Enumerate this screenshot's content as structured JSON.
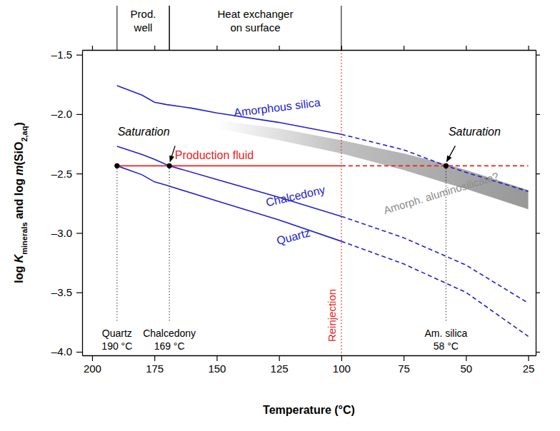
{
  "chart_data": {
    "type": "line",
    "xlabel": "Temperature (°C)",
    "ylabel": [
      {
        "text": "log "
      },
      {
        "text": "K",
        "style": "italic"
      },
      {
        "text": "minerals",
        "style": "sub"
      },
      {
        "text": " and log "
      },
      {
        "text": "m",
        "style": "italic"
      },
      {
        "text": "(SiO"
      },
      {
        "text": "2,aq",
        "style": "sub"
      },
      {
        "text": ")"
      }
    ],
    "xlim": [
      204,
      22
    ],
    "ylim": [
      -4.03,
      -1.46
    ],
    "xticks": [
      200,
      175,
      150,
      125,
      100,
      75,
      50,
      25
    ],
    "yticks": [
      {
        "value": -4.0,
        "label": "–4.0"
      },
      {
        "value": -3.5,
        "label": "–3.5"
      },
      {
        "value": -3.0,
        "label": "–3.0"
      },
      {
        "value": -2.5,
        "label": "–2.5"
      },
      {
        "value": -2.0,
        "label": "–2.0"
      },
      {
        "value": -1.5,
        "label": "–1.5"
      }
    ],
    "series": [
      {
        "name": "Amorphous silica",
        "color": "#2222cc",
        "line_style": "solid",
        "x": [
          190,
          180,
          175,
          170,
          160,
          150,
          125,
          100
        ],
        "values": [
          -1.76,
          -1.84,
          -1.9,
          -1.92,
          -1.95,
          -1.99,
          -2.07,
          -2.17
        ]
      },
      {
        "color": "#2222cc",
        "line_style": "dashed",
        "x": [
          100,
          75,
          58,
          50,
          25
        ],
        "values": [
          -2.17,
          -2.3,
          -2.435,
          -2.49,
          -2.65
        ]
      },
      {
        "name": "Chalcedony",
        "color": "#2222cc",
        "line_style": "solid",
        "x": [
          190,
          180,
          175,
          169,
          150,
          125,
          100
        ],
        "values": [
          -2.27,
          -2.34,
          -2.38,
          -2.435,
          -2.55,
          -2.7,
          -2.86
        ]
      },
      {
        "color": "#2222cc",
        "line_style": "dashed",
        "x": [
          100,
          75,
          50,
          25
        ],
        "values": [
          -2.86,
          -3.04,
          -3.27,
          -3.59
        ]
      },
      {
        "name": "Quartz",
        "color": "#2222cc",
        "line_style": "solid",
        "x": [
          190,
          180,
          175,
          170,
          150,
          125,
          100
        ],
        "values": [
          -2.435,
          -2.51,
          -2.57,
          -2.6,
          -2.73,
          -2.89,
          -3.07
        ]
      },
      {
        "color": "#2222cc",
        "line_style": "dashed",
        "x": [
          100,
          75,
          50,
          25
        ],
        "values": [
          -3.07,
          -3.26,
          -3.5,
          -3.87
        ]
      },
      {
        "name": "Production fluid",
        "color": "#e8221c",
        "line_style": "solid",
        "x": [
          190,
          100
        ],
        "values": [
          -2.435,
          -2.435
        ]
      },
      {
        "color": "#e8221c",
        "line_style": "dashed",
        "x": [
          100,
          25
        ],
        "values": [
          -2.435,
          -2.435
        ]
      },
      {
        "name": "Amorph. aluminosilicate?",
        "type": "area",
        "color": "#8c8c8c",
        "x": [
          150,
          125,
          100,
          75,
          58,
          50,
          25
        ],
        "values": [
          -2.05,
          -2.12,
          -2.22,
          -2.33,
          -2.42,
          -2.47,
          -2.64
        ],
        "low": [
          -2.12,
          -2.22,
          -2.33,
          -2.47,
          -2.58,
          -2.63,
          -2.8
        ]
      }
    ],
    "zones": [
      {
        "label": [
          "Prod.",
          "well"
        ],
        "from": 190,
        "to": 169
      },
      {
        "label": [
          "Heat exchanger",
          "on surface"
        ],
        "from": 169,
        "to": 100
      }
    ],
    "saturation_points": [
      {
        "mineral": "Quartz",
        "x": 190,
        "y": -2.435,
        "label": "190 °C"
      },
      {
        "mineral": "Chalcedony",
        "x": 169,
        "y": -2.435,
        "label": "169 °C",
        "annotation": "Saturation"
      },
      {
        "mineral": "Am. silica",
        "x": 58,
        "y": -2.435,
        "label": "58 °C",
        "annotation": "Saturation"
      }
    ],
    "reinjection": {
      "label": "Reinjection",
      "x": 100
    }
  }
}
